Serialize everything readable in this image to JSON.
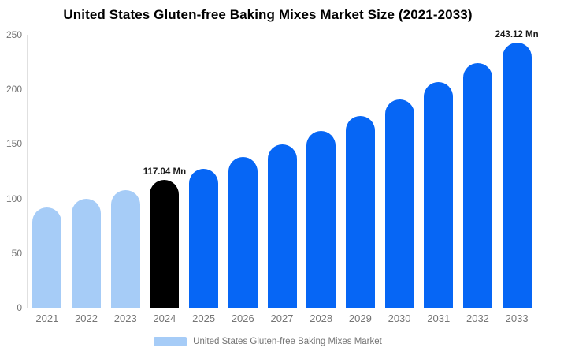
{
  "title": "United States Gluten-free Baking Mixes Market Size (2021-2033)",
  "legend": {
    "label": "United States Gluten-free Baking Mixes Market",
    "swatch_color": "#a6ccf7"
  },
  "colors": {
    "past_bar": "#a6ccf7",
    "current_bar": "#000000",
    "forecast_bar": "#0666f5",
    "axis_line": "#e0e0e0",
    "tick_text": "#757575",
    "value_label_text": "#1a1a1a",
    "title_text": "#000000",
    "background": "#ffffff"
  },
  "chart_data": {
    "type": "bar",
    "title": "United States Gluten-free Baking Mixes Market Size (2021-2033)",
    "xlabel": "",
    "ylabel": "",
    "unit": "Mn",
    "categories": [
      "2021",
      "2022",
      "2023",
      "2024",
      "2025",
      "2026",
      "2027",
      "2028",
      "2029",
      "2030",
      "2031",
      "2032",
      "2033"
    ],
    "values": [
      91.7,
      99.5,
      107.9,
      117.04,
      126.9,
      137.7,
      149.4,
      162.0,
      175.7,
      190.6,
      206.7,
      224.2,
      243.12
    ],
    "bar_colors": [
      "#a6ccf7",
      "#a6ccf7",
      "#a6ccf7",
      "#000000",
      "#0666f5",
      "#0666f5",
      "#0666f5",
      "#0666f5",
      "#0666f5",
      "#0666f5",
      "#0666f5",
      "#0666f5",
      "#0666f5"
    ],
    "annotations": [
      {
        "category": "2024",
        "text": "117.04 Mn"
      },
      {
        "category": "2033",
        "text": "243.12 Mn"
      }
    ],
    "ylim": [
      0,
      250
    ],
    "yticks": [
      0,
      50,
      100,
      150,
      200,
      250
    ],
    "grid": false,
    "legend_position": "bottom",
    "legend_entries": [
      "United States Gluten-free Baking Mixes Market"
    ]
  }
}
